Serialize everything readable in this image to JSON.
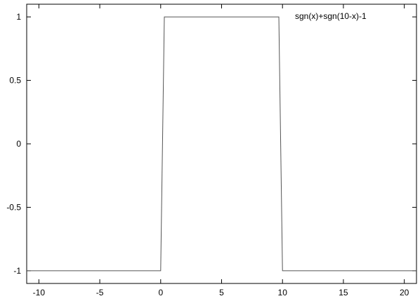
{
  "chart_data": {
    "type": "line",
    "xlim": [
      -11,
      21
    ],
    "ylim": [
      -1.1,
      1.1
    ],
    "xticks": [
      -10,
      -5,
      0,
      5,
      10,
      15,
      20
    ],
    "yticks": [
      1,
      0.5,
      0,
      -0.5,
      -1
    ],
    "xtick_labels": [
      "-10",
      "-5",
      "0",
      "5",
      "10",
      "15",
      "20"
    ],
    "ytick_labels": [
      "1",
      "0.5",
      "0",
      "-0.5",
      "-1"
    ],
    "grid": false,
    "legend_position": "top-right",
    "title": "",
    "xlabel": "",
    "ylabel": "",
    "series": [
      {
        "name": "sgn(x)+sgn(10-x)-1",
        "color": "#555555",
        "x": [
          -11,
          0,
          0.3,
          9.7,
          10,
          21
        ],
        "y": [
          -1,
          -1,
          1,
          1,
          -1,
          -1
        ]
      }
    ]
  }
}
